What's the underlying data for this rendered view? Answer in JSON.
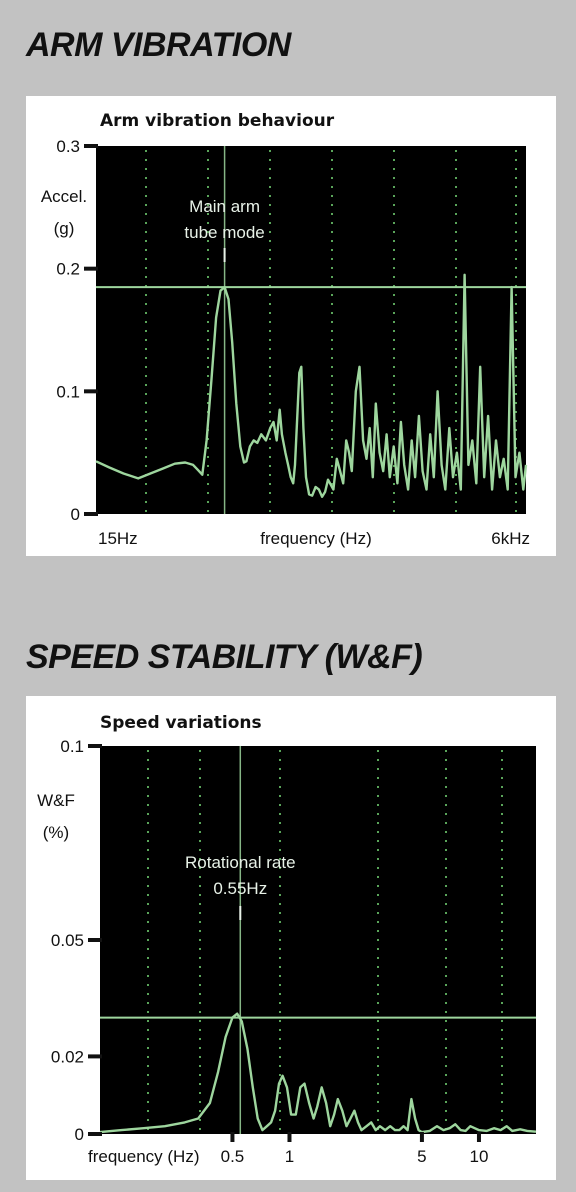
{
  "sections": [
    {
      "title": "ARM VIBRATION"
    },
    {
      "title": "SPEED STABILITY (W&F)"
    }
  ],
  "chart_data": [
    {
      "type": "line",
      "title": "Arm vibration behaviour",
      "ylabel_lines": [
        "Accel.",
        "(g)"
      ],
      "xlabel": "frequency (Hz)",
      "x_scale": "log",
      "xlim": [
        15,
        6000
      ],
      "ylim": [
        0,
        0.3
      ],
      "y_ticks": [
        {
          "value": 0,
          "label": "0"
        },
        {
          "value": 0.1,
          "label": "0.1"
        },
        {
          "value": 0.2,
          "label": "0.2"
        },
        {
          "value": 0.3,
          "label": "0.3"
        }
      ],
      "x_ticks": [
        {
          "value": 15,
          "label": "15Hz"
        },
        {
          "value": 6000,
          "label": "6kHz"
        }
      ],
      "annotation": {
        "lines": [
          "Main arm",
          "tube mode"
        ],
        "x": 90,
        "y": 0.185
      },
      "reference_level": 0.185,
      "grid": true,
      "colors": {
        "plot_bg": "#000000",
        "trace": "#9ed69e",
        "grid": "#5aa55a"
      },
      "series": [
        {
          "x": [
            15,
            18,
            22,
            27,
            32,
            38,
            45,
            52,
            58,
            62,
            66,
            70,
            75,
            80,
            85,
            90,
            95,
            100,
            106,
            112,
            118,
            122,
            128,
            135,
            142,
            150,
            160,
            170,
            178,
            186,
            194,
            200,
            210,
            218,
            226,
            234,
            240,
            248,
            255,
            262,
            270,
            280,
            292,
            305,
            320,
            335,
            350,
            365,
            380,
            395,
            410,
            430,
            450,
            470,
            490,
            510,
            530,
            560,
            590,
            620,
            650,
            680,
            710,
            740,
            780,
            820,
            860,
            900,
            950,
            1000,
            1050,
            1100,
            1160,
            1220,
            1280,
            1350,
            1420,
            1500,
            1580,
            1660,
            1750,
            1850,
            1950,
            2060,
            2170,
            2290,
            2420,
            2550,
            2690,
            2840,
            3000,
            3170,
            3350,
            3540,
            3740,
            3950,
            4170,
            4400,
            4650,
            4910,
            5180,
            5470,
            5780,
            6000
          ],
          "y": [
            0.043,
            0.038,
            0.033,
            0.029,
            0.033,
            0.037,
            0.041,
            0.042,
            0.04,
            0.036,
            0.032,
            0.06,
            0.11,
            0.16,
            0.182,
            0.185,
            0.175,
            0.14,
            0.09,
            0.055,
            0.042,
            0.043,
            0.055,
            0.06,
            0.058,
            0.065,
            0.06,
            0.07,
            0.075,
            0.06,
            0.085,
            0.065,
            0.05,
            0.04,
            0.03,
            0.025,
            0.04,
            0.08,
            0.115,
            0.12,
            0.07,
            0.03,
            0.016,
            0.015,
            0.022,
            0.02,
            0.014,
            0.018,
            0.028,
            0.024,
            0.02,
            0.045,
            0.035,
            0.025,
            0.06,
            0.05,
            0.035,
            0.1,
            0.12,
            0.06,
            0.045,
            0.07,
            0.03,
            0.09,
            0.05,
            0.035,
            0.065,
            0.03,
            0.055,
            0.025,
            0.075,
            0.04,
            0.02,
            0.06,
            0.03,
            0.08,
            0.035,
            0.02,
            0.065,
            0.03,
            0.1,
            0.04,
            0.02,
            0.07,
            0.03,
            0.05,
            0.02,
            0.195,
            0.04,
            0.06,
            0.025,
            0.12,
            0.03,
            0.08,
            0.02,
            0.06,
            0.03,
            0.045,
            0.02,
            0.185,
            0.03,
            0.05,
            0.02,
            0.04
          ]
        }
      ]
    },
    {
      "type": "line",
      "title": "Speed variations",
      "ylabel_lines": [
        "W&F",
        "(%)"
      ],
      "xlabel": "frequency (Hz)",
      "x_scale": "log",
      "xlim": [
        0.1,
        20
      ],
      "ylim": [
        0,
        0.1
      ],
      "y_ticks": [
        {
          "value": 0,
          "label": "0"
        },
        {
          "value": 0.02,
          "label": "0.02"
        },
        {
          "value": 0.05,
          "label": "0.05"
        },
        {
          "value": 0.1,
          "label": "0.1"
        }
      ],
      "x_ticks": [
        {
          "value": 0.5,
          "label": "0.5"
        },
        {
          "value": 1,
          "label": "1"
        },
        {
          "value": 5,
          "label": "5"
        },
        {
          "value": 10,
          "label": "10"
        }
      ],
      "annotation": {
        "lines": [
          "Rotational rate",
          "0.55Hz"
        ],
        "x": 0.55,
        "y": 0.03
      },
      "reference_level": 0.03,
      "grid": true,
      "colors": {
        "plot_bg": "#000000",
        "trace": "#9ed69e",
        "grid": "#5aa55a"
      },
      "series": [
        {
          "x": [
            0.1,
            0.13,
            0.17,
            0.22,
            0.28,
            0.33,
            0.38,
            0.42,
            0.46,
            0.5,
            0.53,
            0.56,
            0.6,
            0.64,
            0.68,
            0.72,
            0.76,
            0.8,
            0.84,
            0.88,
            0.92,
            0.97,
            1.02,
            1.08,
            1.14,
            1.2,
            1.27,
            1.34,
            1.4,
            1.48,
            1.56,
            1.64,
            1.72,
            1.8,
            1.9,
            2.0,
            2.1,
            2.2,
            2.3,
            2.4,
            2.55,
            2.7,
            2.85,
            3.0,
            3.2,
            3.4,
            3.6,
            3.8,
            4.0,
            4.2,
            4.4,
            4.6,
            4.8,
            5.0,
            5.5,
            6.0,
            6.5,
            7.0,
            7.5,
            8.0,
            8.5,
            9.0,
            9.5,
            10.0,
            11.0,
            12.0,
            13.0,
            14.0,
            15.0,
            16.5,
            18.0,
            20.0
          ],
          "y": [
            0.0005,
            0.001,
            0.0015,
            0.002,
            0.003,
            0.004,
            0.008,
            0.016,
            0.025,
            0.03,
            0.031,
            0.029,
            0.022,
            0.012,
            0.004,
            0.001,
            0.002,
            0.003,
            0.006,
            0.013,
            0.015,
            0.012,
            0.005,
            0.005,
            0.012,
            0.013,
            0.008,
            0.004,
            0.007,
            0.012,
            0.008,
            0.002,
            0.005,
            0.009,
            0.006,
            0.002,
            0.004,
            0.006,
            0.003,
            0.001,
            0.002,
            0.003,
            0.001,
            0.002,
            0.001,
            0.002,
            0.001,
            0.001,
            0.002,
            0.001,
            0.009,
            0.004,
            0.001,
            0.0005,
            0.0008,
            0.002,
            0.001,
            0.0015,
            0.0025,
            0.001,
            0.0008,
            0.002,
            0.0015,
            0.001,
            0.0008,
            0.0015,
            0.001,
            0.002,
            0.0008,
            0.0012,
            0.0008,
            0.0006
          ]
        }
      ]
    }
  ]
}
